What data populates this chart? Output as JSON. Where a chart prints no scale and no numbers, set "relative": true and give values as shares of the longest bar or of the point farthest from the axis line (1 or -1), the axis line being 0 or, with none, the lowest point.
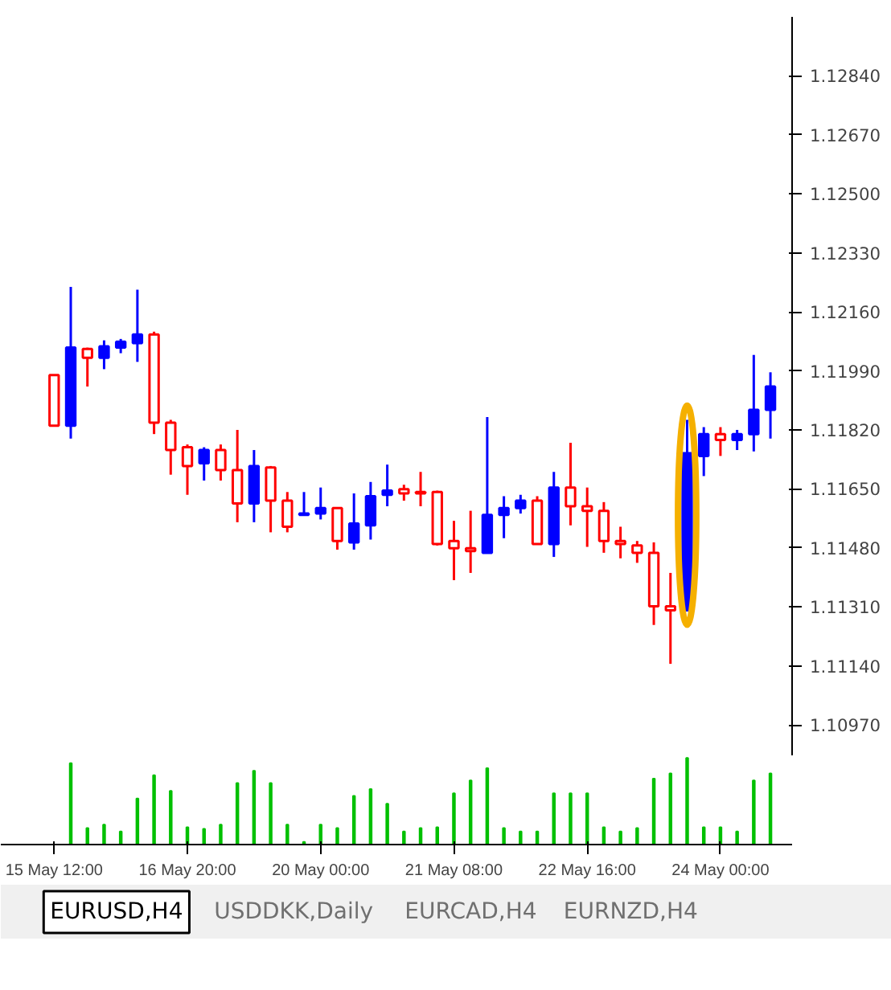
{
  "chart_data": [
    {
      "type": "candlestick",
      "categories": [
        null,
        null,
        null,
        null,
        null,
        null,
        null,
        null,
        null,
        null,
        null,
        null,
        null,
        null,
        null,
        null,
        null,
        null,
        null,
        null,
        null,
        null,
        null,
        null,
        null,
        null,
        null,
        null,
        null,
        null,
        null,
        null,
        null,
        null,
        null,
        null,
        null,
        null,
        null,
        null,
        null,
        null,
        null,
        null
      ],
      "ohlc": [
        [
          1.11978,
          1.11978,
          1.11832,
          1.11832
        ],
        [
          1.11832,
          1.12232,
          1.11795,
          1.12057
        ],
        [
          1.12053,
          1.12057,
          1.11945,
          1.12028
        ],
        [
          1.12028,
          1.12078,
          1.11995,
          1.12061
        ],
        [
          1.12057,
          1.12082,
          1.12041,
          1.12074
        ],
        [
          1.1207,
          1.12224,
          1.12016,
          1.12095
        ],
        [
          1.12095,
          1.12103,
          1.11808,
          1.11841
        ],
        [
          1.11841,
          1.11849,
          1.11691,
          1.11762
        ],
        [
          1.1177,
          1.11778,
          1.11633,
          1.11716
        ],
        [
          1.11724,
          1.1177,
          1.11674,
          1.11762
        ],
        [
          1.11762,
          1.11778,
          1.11674,
          1.11704
        ],
        [
          1.11704,
          1.1182,
          1.11554,
          1.11608
        ],
        [
          1.11608,
          1.11762,
          1.11554,
          1.11716
        ],
        [
          1.11712,
          1.11716,
          1.11525,
          1.11616
        ],
        [
          1.11616,
          1.11641,
          1.11525,
          1.11541
        ],
        [
          1.11575,
          1.11641,
          1.11575,
          1.11579
        ],
        [
          1.11579,
          1.11654,
          1.11562,
          1.11595
        ],
        [
          1.11595,
          1.11595,
          1.11475,
          1.115
        ],
        [
          1.11496,
          1.11637,
          1.11475,
          1.1155
        ],
        [
          1.11545,
          1.1167,
          1.11504,
          1.11629
        ],
        [
          1.11633,
          1.1172,
          1.116,
          1.11645
        ],
        [
          1.11649,
          1.11662,
          1.11616,
          1.11637
        ],
        [
          1.11641,
          1.11699,
          1.116,
          1.11637
        ],
        [
          1.11641,
          1.11645,
          1.11487,
          1.11491
        ],
        [
          1.115,
          1.11558,
          1.11387,
          1.11479
        ],
        [
          1.11479,
          1.11587,
          1.11408,
          1.11471
        ],
        [
          1.11466,
          1.11857,
          1.11466,
          1.11575
        ],
        [
          1.11575,
          1.11629,
          1.11508,
          1.11595
        ],
        [
          1.11595,
          1.11633,
          1.11579,
          1.11616
        ],
        [
          1.11616,
          1.11629,
          1.11491,
          1.11491
        ],
        [
          1.11491,
          1.11699,
          1.11454,
          1.11654
        ],
        [
          1.11654,
          1.11783,
          1.11545,
          1.116
        ],
        [
          1.116,
          1.11654,
          1.11483,
          1.11587
        ],
        [
          1.11587,
          1.11612,
          1.11466,
          1.115
        ],
        [
          1.115,
          1.11541,
          1.1145,
          1.11491
        ],
        [
          1.11487,
          1.115,
          1.11437,
          1.11466
        ],
        [
          1.11466,
          1.11496,
          1.11258,
          1.11312
        ],
        [
          1.11312,
          1.11408,
          1.11146,
          1.113
        ],
        [
          1.113,
          1.11849,
          1.113,
          1.11753
        ],
        [
          1.11745,
          1.11828,
          1.11687,
          1.11808
        ],
        [
          1.11808,
          1.11828,
          1.11745,
          1.11791
        ],
        [
          1.11791,
          1.1182,
          1.11762,
          1.11808
        ],
        [
          1.11808,
          1.12036,
          1.11758,
          1.11878
        ],
        [
          1.11878,
          1.11986,
          1.11795,
          1.11945
        ]
      ],
      "colors": [
        "#ff0000",
        "#0000ff",
        "#ff0000",
        "#0000ff",
        "#0000ff",
        "#0000ff",
        "#ff0000",
        "#ff0000",
        "#ff0000",
        "#0000ff",
        "#ff0000",
        "#ff0000",
        "#0000ff",
        "#ff0000",
        "#ff0000",
        "#0000ff",
        "#0000ff",
        "#ff0000",
        "#0000ff",
        "#0000ff",
        "#0000ff",
        "#ff0000",
        "#ff0000",
        "#ff0000",
        "#ff0000",
        "#ff0000",
        "#0000ff",
        "#0000ff",
        "#0000ff",
        "#ff0000",
        "#0000ff",
        "#ff0000",
        "#ff0000",
        "#ff0000",
        "#ff0000",
        "#ff0000",
        "#ff0000",
        "#ff0000",
        "#0000ff",
        "#0000ff",
        "#ff0000",
        "#0000ff",
        "#0000ff",
        "#0000ff"
      ],
      "ylim": [
        1.1088,
        1.1301
      ],
      "yticks": [
        {
          "value": 1.1097,
          "label": "1.10970"
        },
        {
          "value": 1.1114,
          "label": "1.11140"
        },
        {
          "value": 1.1131,
          "label": "1.11310"
        },
        {
          "value": 1.1148,
          "label": "1.11480"
        },
        {
          "value": 1.1165,
          "label": "1.11650"
        },
        {
          "value": 1.1182,
          "label": "1.11820"
        },
        {
          "value": 1.1199,
          "label": "1.11990"
        },
        {
          "value": 1.1216,
          "label": "1.12160"
        },
        {
          "value": 1.1233,
          "label": "1.12330"
        },
        {
          "value": 1.125,
          "label": "1.12500"
        },
        {
          "value": 1.1267,
          "label": "1.12670"
        },
        {
          "value": 1.1284,
          "label": "1.12840"
        }
      ],
      "tick_labels": "y"
    },
    {
      "type": "bar",
      "relative": true,
      "color": "#00c000",
      "tick_labels": "x",
      "categories": [
        "15 May 12:00",
        null,
        null,
        null,
        null,
        null,
        null,
        null,
        "16 May 20:00",
        null,
        null,
        null,
        null,
        null,
        null,
        null,
        "20 May 00:00",
        null,
        null,
        null,
        null,
        null,
        null,
        null,
        "21 May 08:00",
        null,
        null,
        null,
        null,
        null,
        null,
        null,
        "22 May 16:00",
        null,
        null,
        null,
        null,
        null,
        null,
        null,
        "24 May 00:00",
        null,
        null,
        null
      ],
      "values": [
        null,
        0.94,
        0.19,
        0.23,
        0.15,
        0.53,
        0.8,
        0.62,
        0.2,
        0.18,
        0.23,
        0.71,
        0.85,
        0.71,
        0.23,
        0.03,
        0.23,
        0.19,
        0.56,
        0.64,
        0.47,
        0.15,
        0.19,
        0.2,
        0.59,
        0.74,
        0.88,
        0.19,
        0.15,
        0.15,
        0.59,
        0.59,
        0.59,
        0.2,
        0.15,
        0.19,
        0.76,
        0.82,
        1,
        0.2,
        0.2,
        0.15,
        0.74,
        0.82
      ],
      "annotations": [
        "EURUSD,H4",
        "USDDKK,Daily",
        "EURCAD,H4",
        "EURNZD,H4"
      ]
    }
  ]
}
